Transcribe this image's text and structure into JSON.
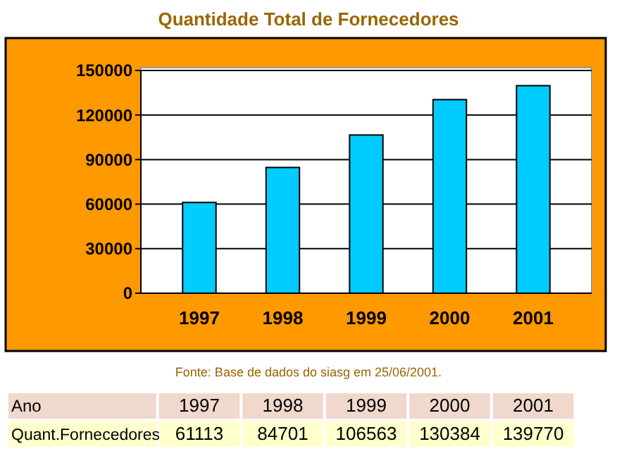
{
  "chart_data": {
    "type": "bar",
    "title": "Quantidade Total de Fornecedores",
    "categories": [
      "1997",
      "1998",
      "1999",
      "2000",
      "2001"
    ],
    "values": [
      61113,
      84701,
      106563,
      130384,
      139770
    ],
    "color": "#00ccff",
    "value_labels": [
      "61113",
      "84701",
      "106563",
      "130384",
      "139770"
    ],
    "ylim": [
      0,
      150000
    ],
    "yticks": [
      0,
      30000,
      60000,
      90000,
      120000,
      150000
    ],
    "grid": "y",
    "annotations": [
      "Fonte: Base de dados do siasg em 25/06/2001.",
      "Ano",
      "Quant.Fornecedores"
    ]
  }
}
